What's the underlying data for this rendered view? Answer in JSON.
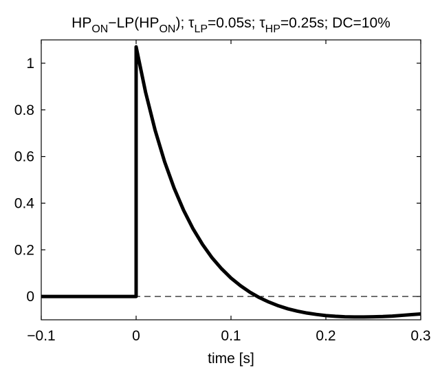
{
  "chart_data": {
    "type": "line",
    "title": {
      "segments": [
        {
          "text": "HP",
          "sub": false
        },
        {
          "text": "ON",
          "sub": true
        },
        {
          "text": "−LP(HP",
          "sub": false
        },
        {
          "text": "ON",
          "sub": true
        },
        {
          "text": "); τ",
          "sub": false
        },
        {
          "text": "LP",
          "sub": true
        },
        {
          "text": "=0.05s; τ",
          "sub": false
        },
        {
          "text": "HP",
          "sub": true
        },
        {
          "text": "=0.25s; DC=10%",
          "sub": false
        }
      ]
    },
    "xlabel": "time [s]",
    "ylabel": "",
    "xlim": [
      -0.1,
      0.3
    ],
    "ylim": [
      -0.1,
      1.1
    ],
    "xticks": [
      -0.1,
      0,
      0.1,
      0.2,
      0.3
    ],
    "xtick_labels": [
      "−0.1",
      "0",
      "0.1",
      "0.2",
      "0.3"
    ],
    "yticks": [
      0,
      0.2,
      0.4,
      0.6,
      0.8,
      1
    ],
    "ytick_labels": [
      "0",
      "0.2",
      "0.4",
      "0.6",
      "0.8",
      "1"
    ],
    "grid": false,
    "reference_line": {
      "y": 0,
      "style": "dashed",
      "color": "#000000"
    },
    "series": [
      {
        "color": "#000000",
        "x": [
          -0.1,
          0,
          0,
          0.01,
          0.02,
          0.03,
          0.04,
          0.05,
          0.06,
          0.07,
          0.08,
          0.09,
          0.1,
          0.11,
          0.12,
          0.13,
          0.14,
          0.15,
          0.16,
          0.17,
          0.18,
          0.19,
          0.2,
          0.21,
          0.22,
          0.23,
          0.24,
          0.25,
          0.26,
          0.27,
          0.28,
          0.29,
          0.3
        ],
        "y": [
          0,
          0,
          1.07,
          0.875,
          0.713,
          0.578,
          0.465,
          0.37,
          0.29,
          0.223,
          0.166,
          0.119,
          0.079,
          0.046,
          0.018,
          -0.005,
          -0.024,
          -0.04,
          -0.053,
          -0.063,
          -0.071,
          -0.077,
          -0.082,
          -0.085,
          -0.087,
          -0.088,
          -0.088,
          -0.087,
          -0.086,
          -0.084,
          -0.081,
          -0.078,
          -0.075
        ]
      }
    ]
  }
}
